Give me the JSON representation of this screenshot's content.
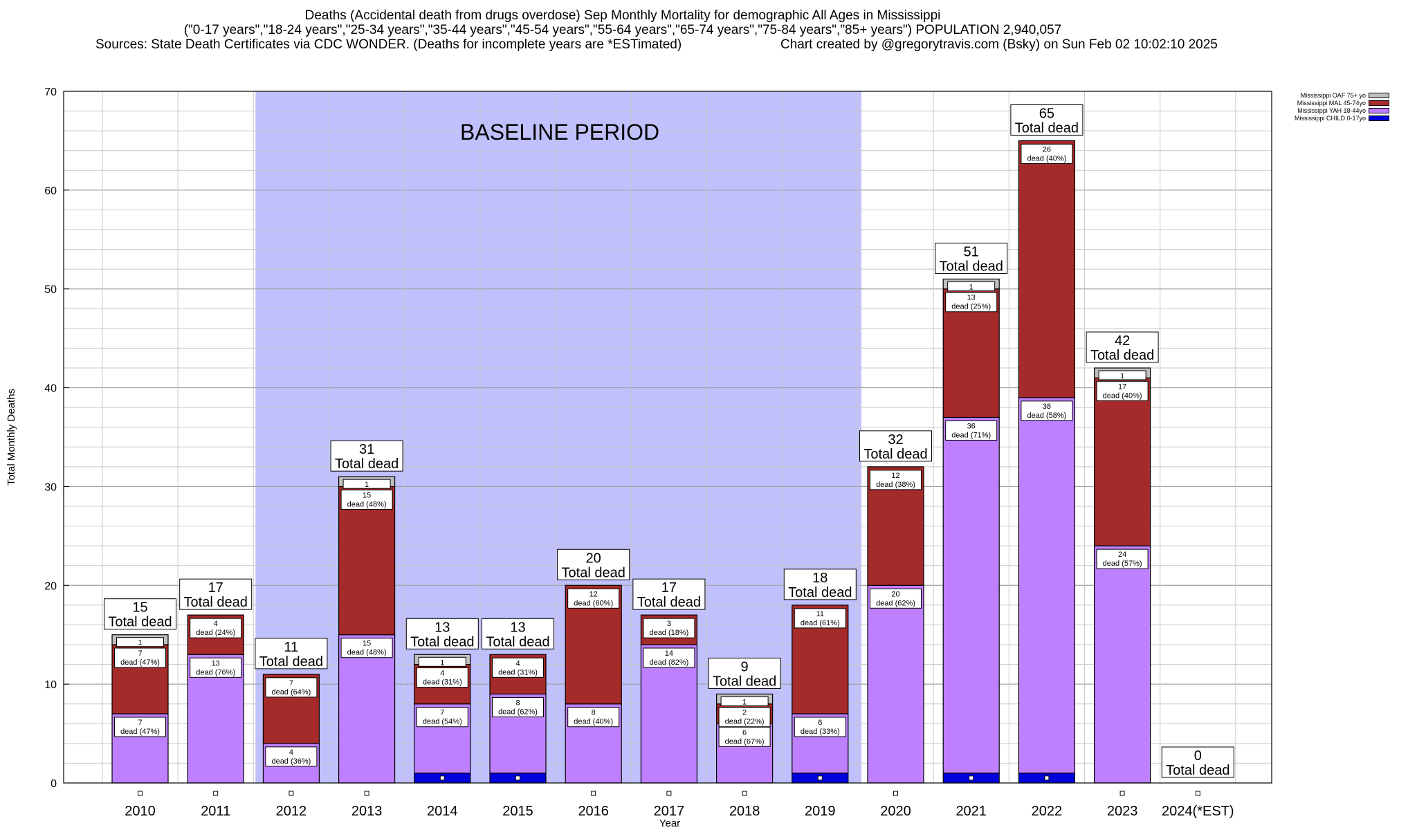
{
  "header": {
    "title_line1": "Deaths (Accidental death from drugs overdose) Sep Monthly Mortality for demographic All Ages in Mississippi",
    "title_line2": "(\"0-17 years\",\"18-24 years\",\"25-34 years\",\"35-44 years\",\"45-54 years\",\"55-64 years\",\"65-74 years\",\"75-84 years\",\"85+ years\") POPULATION 2,940,057",
    "sources": "Sources: State Death Certificates via CDC WONDER. (Deaths for incomplete years are *ESTimated)",
    "credit": "Chart created by @gregorytravis.com (Bsky) on Sun Feb 02 10:02:10 2025"
  },
  "colors": {
    "child": "#0000dd",
    "yah": "#bf80ff",
    "mal": "#a52a2a",
    "oaf": "#c0c0c0",
    "baseline": "#c0c0ff"
  },
  "chart_data": {
    "type": "bar",
    "stacked": true,
    "xlabel": "Year",
    "ylabel": "Total Monthly Deaths",
    "ylim": [
      0,
      70
    ],
    "yticks": [
      0,
      10,
      20,
      30,
      40,
      50,
      60,
      70
    ],
    "minor_grid_step": 2,
    "categories": [
      "2010",
      "2011",
      "2012",
      "2013",
      "2014",
      "2015",
      "2016",
      "2017",
      "2018",
      "2019",
      "2020",
      "2021",
      "2022",
      "2023",
      "2024(*EST)"
    ],
    "baseline_label": "BASELINE PERIOD",
    "baseline_range": [
      "2012",
      "2019"
    ],
    "total_label": "Total dead",
    "segment_label_word": "dead",
    "series": [
      {
        "name": "Mississippi CHILD 0-17yo",
        "key": "child",
        "values": [
          0,
          0,
          0,
          0,
          1,
          1,
          0,
          0,
          0,
          1,
          0,
          1,
          1,
          0,
          0
        ],
        "pct": [
          null,
          null,
          null,
          null,
          null,
          null,
          null,
          null,
          null,
          null,
          null,
          null,
          null,
          null,
          null
        ]
      },
      {
        "name": "Mississippi YAH 18-44yo",
        "key": "yah",
        "values": [
          7,
          13,
          4,
          15,
          7,
          8,
          8,
          14,
          6,
          6,
          20,
          36,
          38,
          24,
          0
        ],
        "pct": [
          "47%",
          "76%",
          "36%",
          "48%",
          "54%",
          "62%",
          "40%",
          "82%",
          "67%",
          "33%",
          "62%",
          "71%",
          "58%",
          "57%",
          null
        ]
      },
      {
        "name": "Mississippi MAL 45-74yo",
        "key": "mal",
        "values": [
          7,
          4,
          7,
          15,
          4,
          4,
          12,
          3,
          2,
          11,
          12,
          13,
          26,
          17,
          0
        ],
        "pct": [
          "47%",
          "24%",
          "64%",
          "48%",
          "31%",
          "31%",
          "60%",
          "18%",
          "22%",
          "61%",
          "38%",
          "25%",
          "40%",
          "40%",
          null
        ]
      },
      {
        "name": "Mississippi OAF 75+ yo",
        "key": "oaf",
        "values": [
          1,
          0,
          0,
          1,
          1,
          0,
          0,
          0,
          1,
          0,
          0,
          1,
          0,
          1,
          0
        ],
        "pct": [
          null,
          null,
          null,
          null,
          null,
          null,
          null,
          null,
          null,
          null,
          null,
          null,
          null,
          null,
          null
        ]
      }
    ],
    "totals": [
      15,
      17,
      11,
      31,
      13,
      13,
      20,
      17,
      9,
      18,
      32,
      51,
      65,
      42,
      0
    ],
    "legend_order": [
      "Mississippi OAF 75+ yo",
      "Mississippi MAL 45-74yo",
      "Mississippi YAH 18-44yo",
      "Mississippi CHILD 0-17yo"
    ],
    "legend_placement": "outside-top-right"
  }
}
